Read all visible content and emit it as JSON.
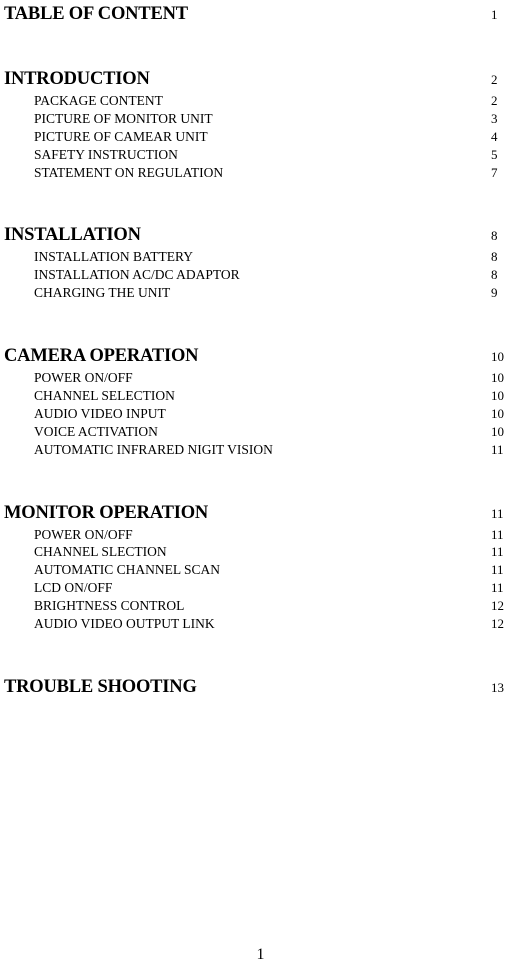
{
  "sections": [
    {
      "title": "TABLE OF CONTENT",
      "page": "1",
      "items": []
    },
    {
      "title": "INTRODUCTION",
      "page": "2",
      "items": [
        {
          "label": "PACKAGE CONTENT",
          "page": "2"
        },
        {
          "label": "PICTURE OF MONITOR UNIT",
          "page": "3"
        },
        {
          "label": "PICTURE OF CAMEAR UNIT",
          "page": "4"
        },
        {
          "label": "SAFETY INSTRUCTION",
          "page": "5"
        },
        {
          "label": "STATEMENT ON REGULATION",
          "page": "7"
        }
      ]
    },
    {
      "title": "INSTALLATION",
      "page": "8",
      "items": [
        {
          "label": "INSTALLATION BATTERY",
          "page": "8"
        },
        {
          "label": "INSTALLATION AC/DC ADAPTOR",
          "page": "8"
        },
        {
          "label": "CHARGING THE UNIT",
          "page": "9"
        }
      ]
    },
    {
      "title": "CAMERA OPERATION",
      "page": "10",
      "items": [
        {
          "label": "POWER ON/OFF",
          "page": "10"
        },
        {
          "label": "CHANNEL SELECTION",
          "page": "10"
        },
        {
          "label": "AUDIO VIDEO INPUT",
          "page": "10"
        },
        {
          "label": "VOICE ACTIVATION",
          "page": "10"
        },
        {
          "label": "AUTOMATIC INFRARED NIGIT VISION",
          "page": "11"
        }
      ]
    },
    {
      "title": "MONITOR OPERATION",
      "page": "11",
      "items": [
        {
          "label": "POWER ON/OFF",
          "page": "11"
        },
        {
          "label": "CHANNEL SLECTION",
          "page": "11"
        },
        {
          "label": "AUTOMATIC CHANNEL SCAN",
          "page": "11"
        },
        {
          "label": "LCD ON/OFF",
          "page": "11"
        },
        {
          "label": "BRIGHTNESS CONTROL",
          "page": "12"
        },
        {
          "label": "AUDIO VIDEO OUTPUT LINK",
          "page": "12"
        }
      ]
    },
    {
      "title": "TROUBLE SHOOTING",
      "page": "13",
      "items": []
    }
  ],
  "footer_page": "1"
}
